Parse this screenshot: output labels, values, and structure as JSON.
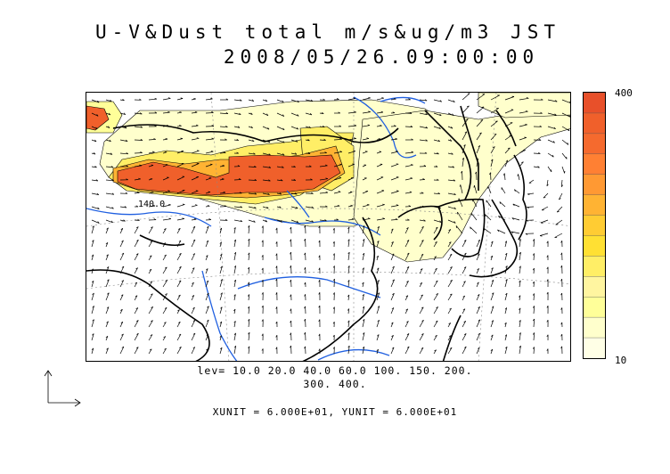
{
  "title_line1": "U-V&Dust total m/s&ug/m3 JST",
  "title_line2": "2008/05/26.09:00:00",
  "colorbar": {
    "max_label": "400",
    "min_label": "10",
    "colors": [
      "#ffffe6",
      "#ffffcc",
      "#ffff99",
      "#fff5a0",
      "#ffee66",
      "#ffe033",
      "#ffcc33",
      "#ffb333",
      "#ff9933",
      "#ff8033",
      "#f56a2e",
      "#f0602b",
      "#e8502a"
    ]
  },
  "levels_line1": "lev= 10.0 20.0 40.0 60.0 100. 150. 200.",
  "levels_line2": "300. 400.",
  "contour_label": "140.0",
  "units_text": "XUNIT = 6.000E+01, YUNIT = 6.000E+01",
  "map_colors": {
    "land": "#000000",
    "river": "#1f5fe0",
    "grid": "#888888"
  }
}
